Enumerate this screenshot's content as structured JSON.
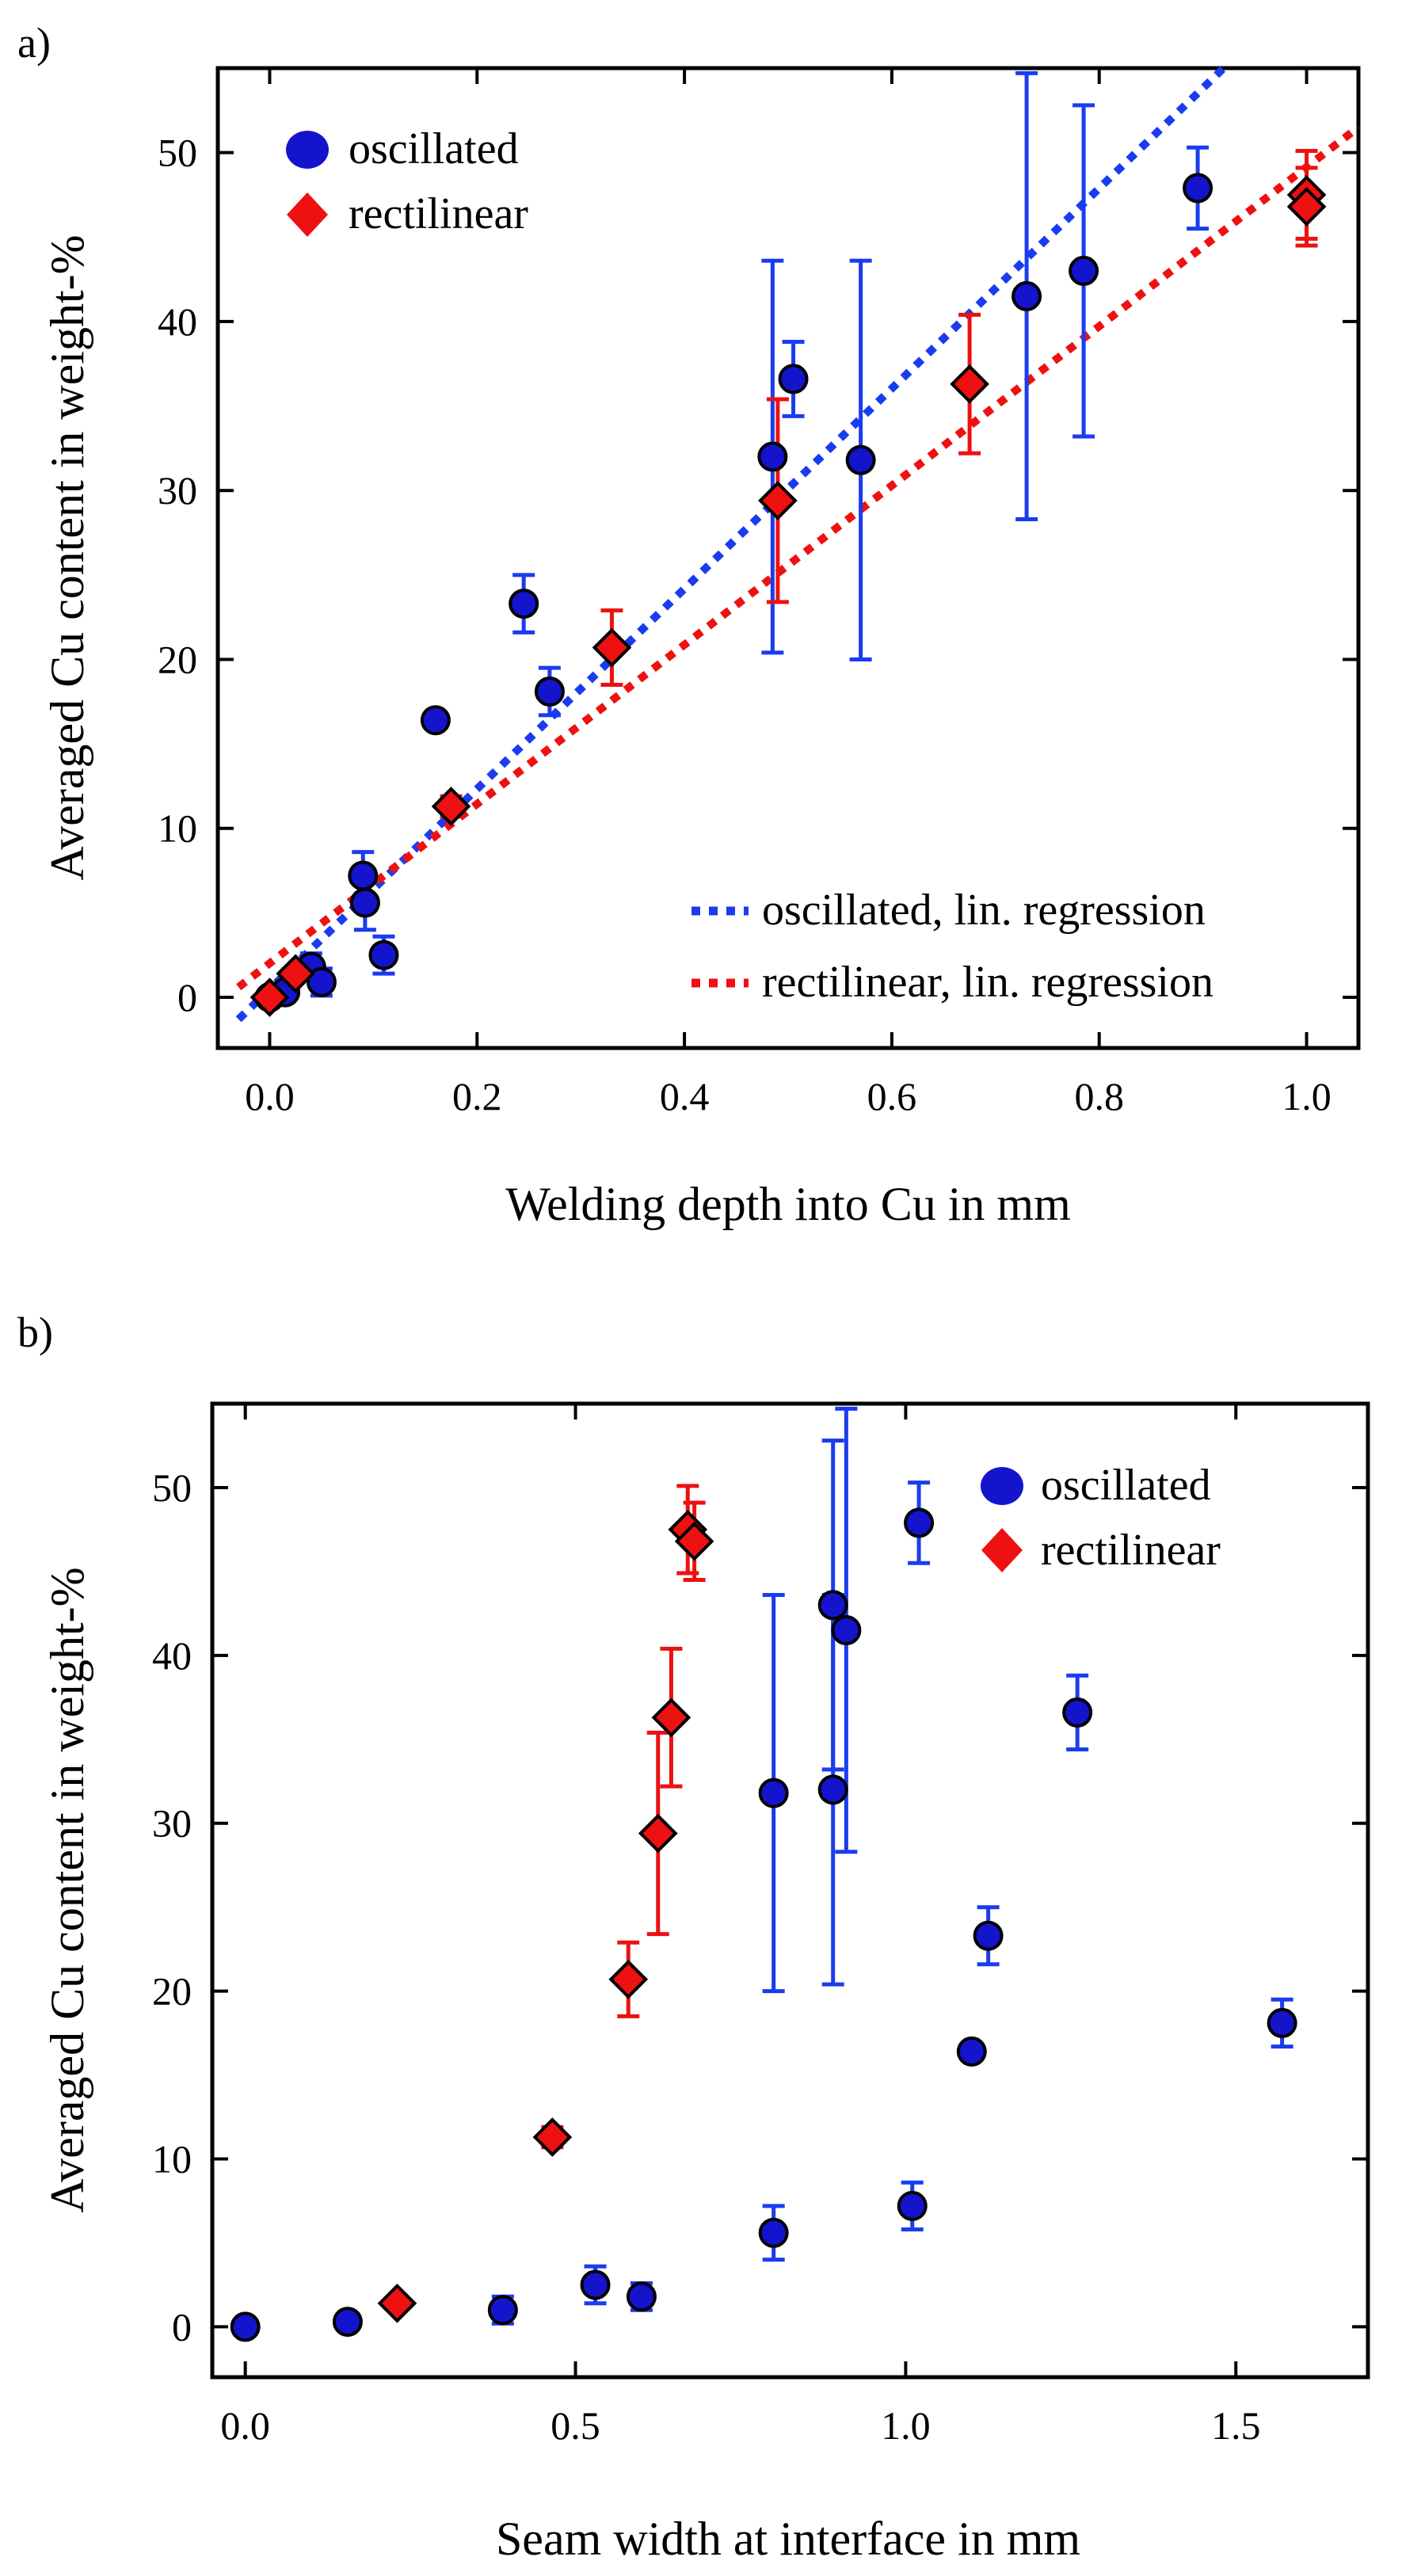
{
  "chart_data": [
    {
      "type": "scatter",
      "panel_label": "a)",
      "xlabel": "Welding depth into Cu in mm",
      "ylabel": "Averaged Cu content in weight-%",
      "xlim": [
        -0.05,
        1.05
      ],
      "ylim": [
        -3,
        55
      ],
      "xticks": [
        0.0,
        0.2,
        0.4,
        0.6,
        0.8,
        1.0
      ],
      "xtick_labels": [
        "0.0",
        "0.2",
        "0.4",
        "0.6",
        "0.8",
        "1.0"
      ],
      "yticks": [
        0,
        10,
        20,
        30,
        40,
        50
      ],
      "ytick_labels": [
        "0",
        "10",
        "20",
        "30",
        "40",
        "50"
      ],
      "legend_markers": [
        {
          "name": "oscillated",
          "marker": "circle",
          "color": "#1414cc"
        },
        {
          "name": "rectilinear",
          "marker": "diamond",
          "color": "#ee1111"
        }
      ],
      "legend_markers_position": "top-left",
      "legend_lines": [
        {
          "name": "oscillated, lin. regression",
          "color": "#1a3cf0"
        },
        {
          "name": "rectilinear, lin. regression",
          "color": "#ee1111"
        }
      ],
      "legend_lines_position": "bottom-right",
      "series": [
        {
          "name": "oscillated",
          "marker": "circle",
          "color": "#1414cc",
          "points": [
            {
              "x": 0.0,
              "y": 0.0,
              "err": 0
            },
            {
              "x": 0.015,
              "y": 0.3,
              "err": 0
            },
            {
              "x": 0.04,
              "y": 1.8,
              "err": 0.8
            },
            {
              "x": 0.05,
              "y": 0.9,
              "err": 0.8
            },
            {
              "x": 0.09,
              "y": 7.2,
              "err": 1.4
            },
            {
              "x": 0.092,
              "y": 5.6,
              "err": 1.6
            },
            {
              "x": 0.11,
              "y": 2.5,
              "err": 1.1
            },
            {
              "x": 0.16,
              "y": 16.4,
              "err": 0
            },
            {
              "x": 0.245,
              "y": 23.3,
              "err": 1.7
            },
            {
              "x": 0.27,
              "y": 18.1,
              "err": 1.4
            },
            {
              "x": 0.485,
              "y": 32.0,
              "err": 11.6
            },
            {
              "x": 0.505,
              "y": 36.6,
              "err": 2.2
            },
            {
              "x": 0.57,
              "y": 31.8,
              "err": 11.8
            },
            {
              "x": 0.73,
              "y": 41.5,
              "err": 13.2
            },
            {
              "x": 0.785,
              "y": 43.0,
              "err": 9.8
            },
            {
              "x": 0.895,
              "y": 47.9,
              "err": 2.4
            }
          ]
        },
        {
          "name": "rectilinear",
          "marker": "diamond",
          "color": "#ee1111",
          "points": [
            {
              "x": 0.0,
              "y": 0.0,
              "err": 0
            },
            {
              "x": 0.025,
              "y": 1.4,
              "err": 0
            },
            {
              "x": 0.175,
              "y": 11.3,
              "err": 0.6
            },
            {
              "x": 0.33,
              "y": 20.7,
              "err": 2.2
            },
            {
              "x": 0.49,
              "y": 29.4,
              "err": 6.0
            },
            {
              "x": 0.675,
              "y": 36.3,
              "err": 4.1
            },
            {
              "x": 1.0,
              "y": 47.5,
              "err": 2.6
            },
            {
              "x": 1.0,
              "y": 46.8,
              "err": 2.3
            }
          ]
        }
      ],
      "regressions": [
        {
          "name": "oscillated, lin. regression",
          "color": "#1a3cf0",
          "x": [
            -0.03,
            0.92
          ],
          "y": [
            -1.3,
            55.0
          ]
        },
        {
          "name": "rectilinear, lin. regression",
          "color": "#ee1111",
          "x": [
            -0.03,
            1.05
          ],
          "y": [
            0.6,
            51.5
          ]
        }
      ]
    },
    {
      "type": "scatter",
      "panel_label": "b)",
      "xlabel": "Seam width at interface in mm",
      "ylabel": "Averaged Cu content in weight-%",
      "xlim": [
        -0.05,
        1.7
      ],
      "ylim": [
        -3,
        55
      ],
      "xticks": [
        0.0,
        0.5,
        1.0,
        1.5
      ],
      "xtick_labels": [
        "0.0",
        "0.5",
        "1.0",
        "1.5"
      ],
      "yticks": [
        0,
        10,
        20,
        30,
        40,
        50
      ],
      "ytick_labels": [
        "0",
        "10",
        "20",
        "30",
        "40",
        "50"
      ],
      "legend_markers": [
        {
          "name": "oscillated",
          "marker": "circle",
          "color": "#1414cc"
        },
        {
          "name": "rectilinear",
          "marker": "diamond",
          "color": "#ee1111"
        }
      ],
      "legend_markers_position": "top-right",
      "series": [
        {
          "name": "oscillated",
          "marker": "circle",
          "color": "#1414cc",
          "points": [
            {
              "x": 0.0,
              "y": 0.0,
              "err": 0
            },
            {
              "x": 0.155,
              "y": 0.3,
              "err": 0
            },
            {
              "x": 0.39,
              "y": 1.0,
              "err": 0.8
            },
            {
              "x": 0.53,
              "y": 2.5,
              "err": 1.1
            },
            {
              "x": 0.6,
              "y": 1.8,
              "err": 0.8
            },
            {
              "x": 0.8,
              "y": 5.6,
              "err": 1.6
            },
            {
              "x": 1.01,
              "y": 7.2,
              "err": 1.4
            },
            {
              "x": 1.1,
              "y": 16.4,
              "err": 0
            },
            {
              "x": 1.125,
              "y": 23.3,
              "err": 1.7
            },
            {
              "x": 1.57,
              "y": 18.1,
              "err": 1.4
            },
            {
              "x": 0.8,
              "y": 31.8,
              "err": 11.8
            },
            {
              "x": 0.89,
              "y": 32.0,
              "err": 11.6
            },
            {
              "x": 1.26,
              "y": 36.6,
              "err": 2.2
            },
            {
              "x": 0.89,
              "y": 43.0,
              "err": 9.8
            },
            {
              "x": 0.91,
              "y": 41.5,
              "err": 13.2
            },
            {
              "x": 1.02,
              "y": 47.9,
              "err": 2.4
            }
          ]
        },
        {
          "name": "rectilinear",
          "marker": "diamond",
          "color": "#ee1111",
          "points": [
            {
              "x": 0.23,
              "y": 1.4,
              "err": 0
            },
            {
              "x": 0.465,
              "y": 11.3,
              "err": 0.6
            },
            {
              "x": 0.58,
              "y": 20.7,
              "err": 2.2
            },
            {
              "x": 0.625,
              "y": 29.4,
              "err": 6.0
            },
            {
              "x": 0.645,
              "y": 36.3,
              "err": 4.1
            },
            {
              "x": 0.67,
              "y": 47.5,
              "err": 2.6
            },
            {
              "x": 0.68,
              "y": 46.8,
              "err": 2.3
            }
          ]
        }
      ]
    }
  ]
}
